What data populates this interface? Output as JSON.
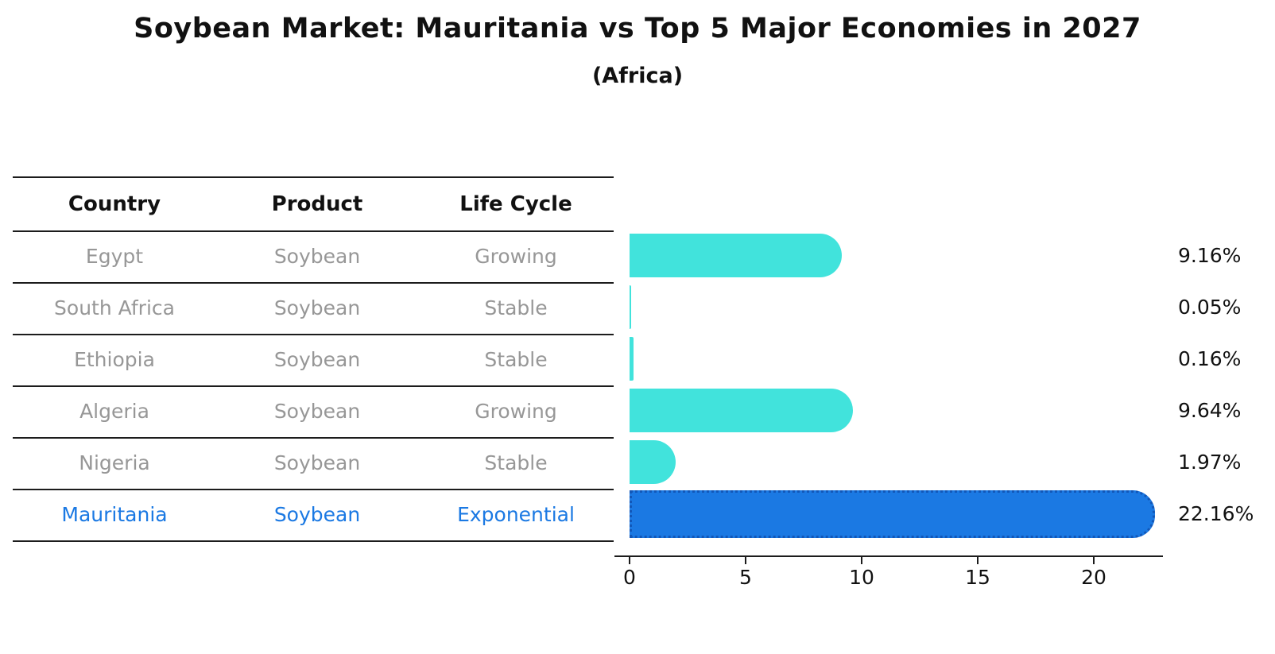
{
  "title": "Soybean Market: Mauritania vs Top 5 Major Economies in 2027",
  "subtitle": "(Africa)",
  "table": {
    "headers": [
      "Country",
      "Product",
      "Life Cycle"
    ],
    "rows": [
      {
        "country": "Egypt",
        "product": "Soybean",
        "life_cycle": "Growing",
        "value_label": "9.16%"
      },
      {
        "country": "South Africa",
        "product": "Soybean",
        "life_cycle": "Stable",
        "value_label": "0.05%"
      },
      {
        "country": "Ethiopia",
        "product": "Soybean",
        "life_cycle": "Stable",
        "value_label": "0.16%"
      },
      {
        "country": "Algeria",
        "product": "Soybean",
        "life_cycle": "Growing",
        "value_label": "9.64%"
      },
      {
        "country": "Nigeria",
        "product": "Soybean",
        "life_cycle": "Stable",
        "value_label": "1.97%"
      },
      {
        "country": "Mauritania",
        "product": "Soybean",
        "life_cycle": "Exponential",
        "value_label": "22.16%"
      }
    ]
  },
  "chart_data": {
    "type": "bar",
    "orientation": "horizontal",
    "title": "Soybean Market: Mauritania vs Top 5 Major Economies in 2027",
    "subtitle": "(Africa)",
    "categories": [
      "Egypt",
      "South Africa",
      "Ethiopia",
      "Algeria",
      "Nigeria",
      "Mauritania"
    ],
    "values": [
      9.16,
      0.05,
      0.16,
      9.64,
      1.97,
      22.16
    ],
    "value_labels": [
      "9.16%",
      "0.05%",
      "0.16%",
      "9.64%",
      "1.97%",
      "22.16%"
    ],
    "xlabel": "",
    "ylabel": "",
    "xlim": [
      0,
      23
    ],
    "xticks": [
      0,
      5,
      10,
      15,
      20
    ],
    "grid": false,
    "legend": "none",
    "bar_colors": [
      "#41e3dc",
      "#41e3dc",
      "#41e3dc",
      "#41e3dc",
      "#41e3dc",
      "#1b79e3"
    ],
    "highlight_index": 5,
    "highlight_edge_style": "dotted"
  },
  "colors": {
    "bar_cyan": "#41e3dc",
    "bar_blue": "#1b79e3",
    "highlight_dot_blue": "#1257b8",
    "table_text_gray": "#979797",
    "highlight_text_blue": "#1b79e3",
    "line_black": "#1c1c1c",
    "text_black": "#111111"
  }
}
